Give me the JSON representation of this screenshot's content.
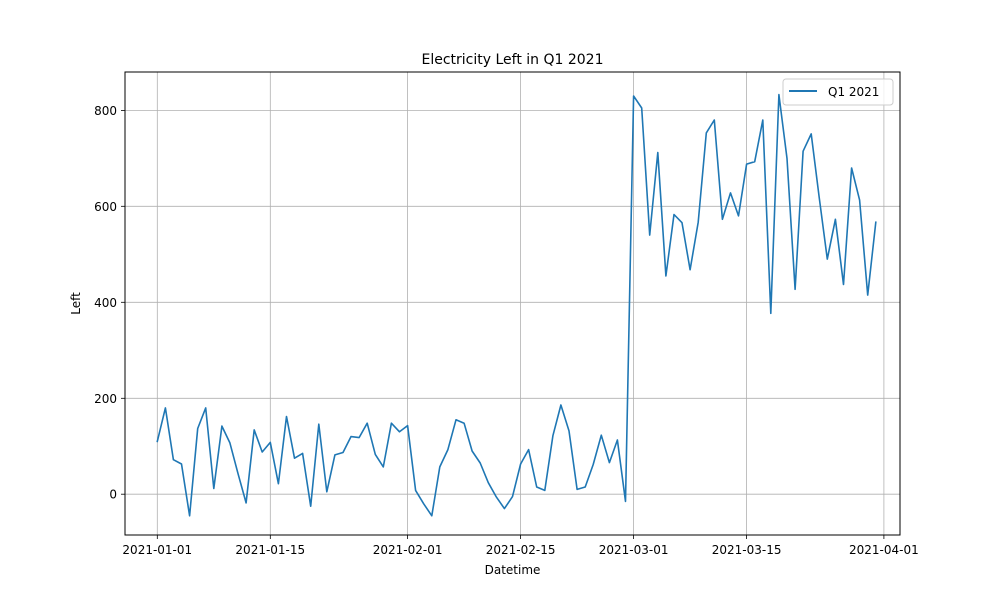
{
  "chart_data": {
    "type": "line",
    "title": "Electricity Left in Q1 2021",
    "xlabel": "Datetime",
    "ylabel": "Left",
    "grid": true,
    "legend_position": "top-right",
    "xlim": [
      "2020-12-28",
      "2021-04-03"
    ],
    "ylim": [
      -85,
      880
    ],
    "xticks": [
      "2021-01-01",
      "2021-01-15",
      "2021-02-01",
      "2021-02-15",
      "2021-03-01",
      "2021-03-15",
      "2021-04-01"
    ],
    "yticks": [
      0,
      200,
      400,
      600,
      800
    ],
    "series": [
      {
        "name": "Q1 2021",
        "color": "#1f77b4",
        "x": [
          "2021-01-01",
          "2021-01-02",
          "2021-01-03",
          "2021-01-04",
          "2021-01-05",
          "2021-01-06",
          "2021-01-07",
          "2021-01-08",
          "2021-01-09",
          "2021-01-10",
          "2021-01-11",
          "2021-01-12",
          "2021-01-13",
          "2021-01-14",
          "2021-01-15",
          "2021-01-16",
          "2021-01-17",
          "2021-01-18",
          "2021-01-19",
          "2021-01-20",
          "2021-01-21",
          "2021-01-22",
          "2021-01-23",
          "2021-01-24",
          "2021-01-25",
          "2021-01-26",
          "2021-01-27",
          "2021-01-28",
          "2021-01-29",
          "2021-01-30",
          "2021-01-31",
          "2021-02-01",
          "2021-02-02",
          "2021-02-03",
          "2021-02-04",
          "2021-02-05",
          "2021-02-06",
          "2021-02-07",
          "2021-02-08",
          "2021-02-09",
          "2021-02-10",
          "2021-02-11",
          "2021-02-12",
          "2021-02-13",
          "2021-02-14",
          "2021-02-15",
          "2021-02-16",
          "2021-02-17",
          "2021-02-18",
          "2021-02-19",
          "2021-02-20",
          "2021-02-21",
          "2021-02-22",
          "2021-02-23",
          "2021-02-24",
          "2021-02-25",
          "2021-02-26",
          "2021-02-27",
          "2021-02-28",
          "2021-03-01",
          "2021-03-02",
          "2021-03-03",
          "2021-03-04",
          "2021-03-05",
          "2021-03-06",
          "2021-03-07",
          "2021-03-08",
          "2021-03-09",
          "2021-03-10",
          "2021-03-11",
          "2021-03-12",
          "2021-03-13",
          "2021-03-14",
          "2021-03-15",
          "2021-03-16",
          "2021-03-17",
          "2021-03-18",
          "2021-03-19",
          "2021-03-20",
          "2021-03-21",
          "2021-03-22",
          "2021-03-23",
          "2021-03-24",
          "2021-03-25",
          "2021-03-26",
          "2021-03-27",
          "2021-03-28",
          "2021-03-29",
          "2021-03-30",
          "2021-03-31"
        ],
        "values": [
          110,
          180,
          72,
          63,
          -45,
          137,
          180,
          12,
          142,
          107,
          43,
          -18,
          134,
          88,
          108,
          22,
          162,
          75,
          85,
          -25,
          146,
          5,
          82,
          87,
          120,
          118,
          148,
          83,
          57,
          148,
          130,
          143,
          8,
          -20,
          -45,
          57,
          93,
          155,
          148,
          90,
          65,
          24,
          -6,
          -30,
          -5,
          63,
          93,
          15,
          8,
          122,
          186,
          132,
          10,
          15,
          62,
          123,
          66,
          113,
          -15,
          830,
          805,
          540,
          712,
          455,
          583,
          566,
          468,
          567,
          753,
          780,
          573,
          628,
          580,
          688,
          693,
          780,
          377,
          833,
          700,
          427,
          715,
          751,
          617,
          490,
          573,
          437,
          680,
          613,
          415,
          567
        ]
      }
    ]
  }
}
